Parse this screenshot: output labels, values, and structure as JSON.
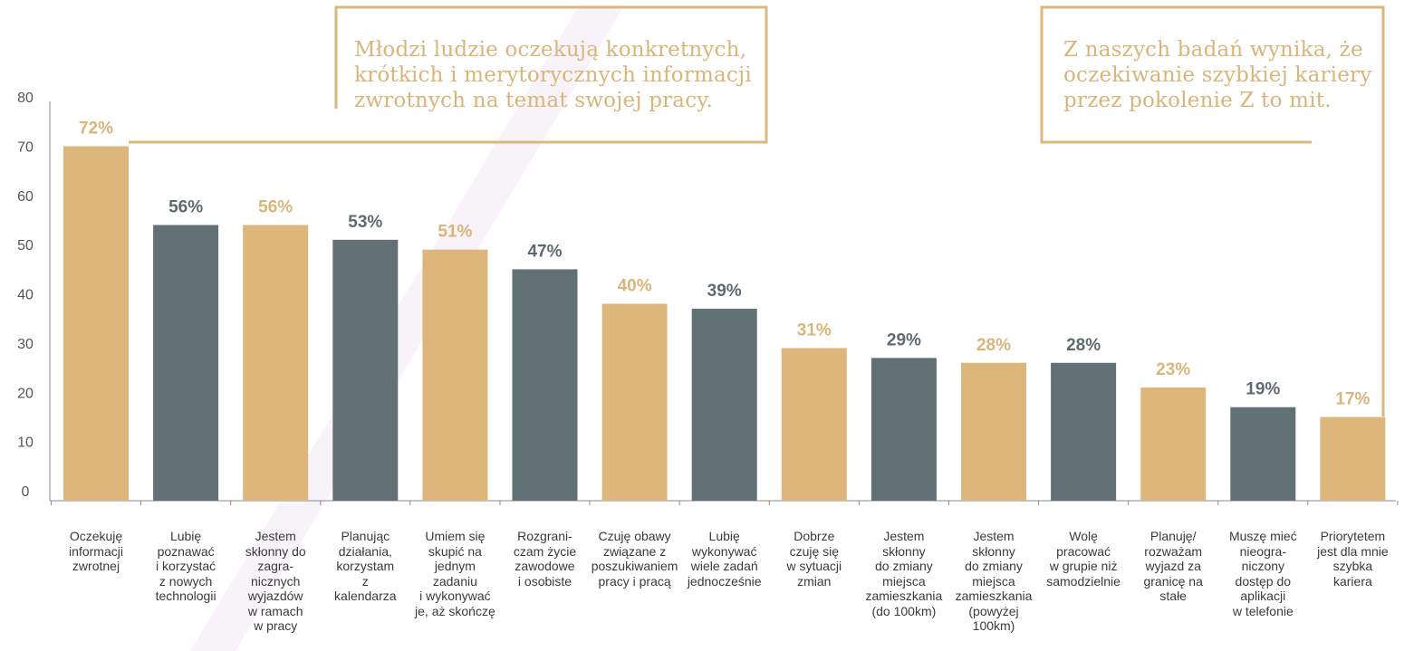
{
  "colors": {
    "gold": "#dcb67b",
    "slate": "#627176",
    "gold_text": "#d9b57a",
    "slate_text": "#5d6b70",
    "frame": "#dcb67b",
    "axis": "#8a8a8a"
  },
  "callouts": {
    "left": "Młodzi ludzie oczekują konkretnych,\nkrótkich i merytorycznych informacji\nzwrotnych na temat swojej pracy.",
    "right": "Z naszych badań wynika, że\noczekiwanie szybkiej kariery\nprzez pokolenie Z to mit."
  },
  "chart_data": {
    "type": "bar",
    "ylim": [
      0,
      80
    ],
    "yticks": [
      "0",
      "10",
      "20",
      "30",
      "40",
      "50",
      "60",
      "70",
      "80"
    ],
    "grid": false,
    "categories": [
      "Oczekuję\ninformacji\nzwrotnej",
      "Lubię\npoznawać\ni korzystać\nz nowych\ntechnologii",
      "Jestem\nskłonny do\nzagra-\nnicznych\nwyjazdów\nw ramach\nw pracy",
      "Planując\ndziałania,\nkorzystam\nz\nkalendarza",
      "Umiem się\nskupić na\njednym\nzadaniu\ni wykonywać\nje, aż skończę",
      "Rozgrani-\nczam życie\nzawodowe\ni osobiste",
      "Czuję obawy\nzwiązane z\nposzukiwaniem\npracy i pracą",
      "Lubię\nwykonywać\nwiele zadań\njednocześnie",
      "Dobrze\nczuję się\nw sytuacji\nzmian",
      "Jestem\nskłonny\ndo zmiany\nmiejsca\nzamieszkania\n(do 100km)",
      "Jestem\nskłonny\ndo zmiany\nmiejsca\nzamieszkania\n(powyżej\n100km)",
      "Wolę\npracować\nw grupie niż\nsamodzielnie",
      "Planuję/\nrozważam\nwyjazd za\ngranicę na\nstałe",
      "Muszę mieć\nnieogra-\nniczony\ndostęp do\naplikacji\nw telefonie",
      "Priorytetem\njest dla mnie\nszybka\nkariera"
    ],
    "values": [
      72,
      56,
      56,
      53,
      51,
      47,
      40,
      39,
      31,
      29,
      28,
      28,
      23,
      19,
      17
    ],
    "value_labels": [
      "72%",
      "56%",
      "56%",
      "53%",
      "51%",
      "47%",
      "40%",
      "39%",
      "31%",
      "29%",
      "28%",
      "28%",
      "23%",
      "19%",
      "17%"
    ],
    "bar_colors": [
      "gold",
      "slate",
      "gold",
      "slate",
      "gold",
      "slate",
      "gold",
      "slate",
      "gold",
      "slate",
      "gold",
      "slate",
      "gold",
      "slate",
      "gold"
    ]
  }
}
